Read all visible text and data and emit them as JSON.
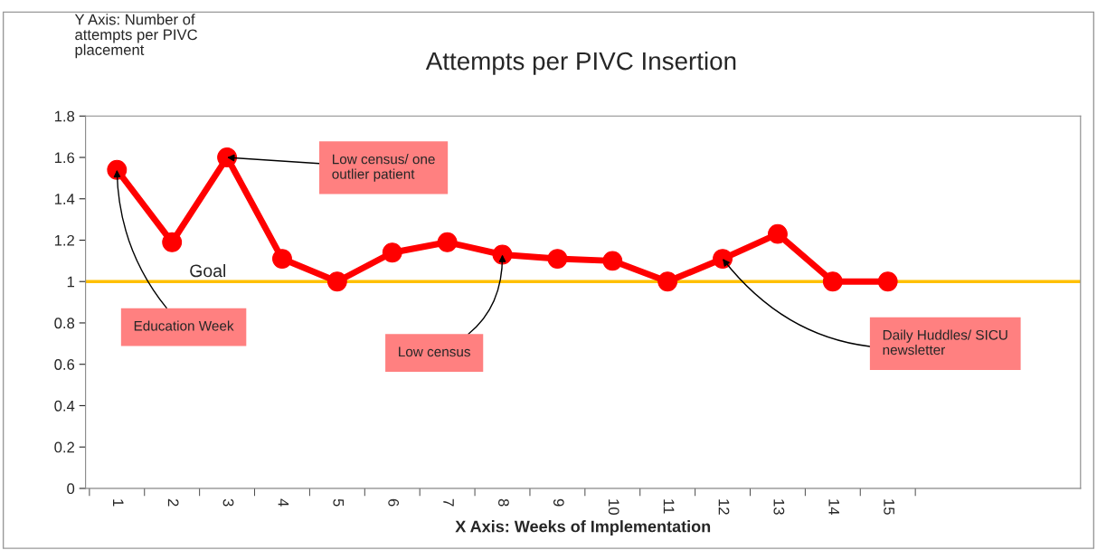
{
  "chart_data": {
    "type": "line",
    "title": "Attempts per PIVC Insertion",
    "ylabel": "Y Axis: Number of\nattempts per PIVC\nplacement",
    "xlabel": "X Axis: Weeks of Implementation",
    "categories": [
      "1",
      "2",
      "3",
      "4",
      "5",
      "6",
      "7",
      "8",
      "9",
      "10",
      "11",
      "12",
      "13",
      "14",
      "15"
    ],
    "series": [
      {
        "color": "#ff0000",
        "values": [
          1.54,
          1.19,
          1.6,
          1.11,
          1.0,
          1.14,
          1.19,
          1.13,
          1.11,
          1.1,
          1.0,
          1.11,
          1.23,
          1.0,
          1.0
        ]
      }
    ],
    "ylim": [
      0,
      1.8
    ],
    "yticks": [
      0,
      0.2,
      0.4,
      0.6,
      0.8,
      1,
      1.2,
      1.4,
      1.6,
      1.8
    ],
    "ref_lines": [
      {
        "axis": "y",
        "value": 1,
        "label": "Goal",
        "color": "#ffc000"
      }
    ],
    "annotations": [
      {
        "text": "Education Week",
        "x": "1",
        "y": 1.54
      },
      {
        "text": "Low census/ one\noutlier patient",
        "x": "3",
        "y": 1.6
      },
      {
        "text": "Low census",
        "x": "8",
        "y": 1.13
      },
      {
        "text": "Daily Huddles/ SICU\nnewsletter",
        "x": "12",
        "y": 1.11
      }
    ],
    "marker": "circle",
    "line_style": "solid",
    "grid": false,
    "legend": false
  }
}
